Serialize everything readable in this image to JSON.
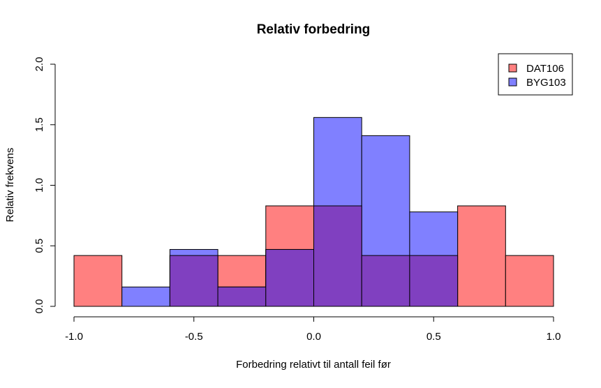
{
  "chart_data": {
    "type": "bar",
    "title": "Relativ forbedring",
    "xlabel": "Forbedring relativt til antall feil før",
    "ylabel": "Relativ frekvens",
    "xlim": [
      -1.0,
      1.0
    ],
    "ylim": [
      0,
      2.0
    ],
    "x_ticks": [
      "-1.0",
      "-0.5",
      "0.0",
      "0.5",
      "1.0"
    ],
    "y_ticks": [
      "0.0",
      "0.5",
      "1.0",
      "1.5",
      "2.0"
    ],
    "bin_edges": [
      -1.0,
      -0.8,
      -0.6,
      -0.4,
      -0.2,
      0.0,
      0.2,
      0.4,
      0.6,
      0.8,
      1.0
    ],
    "series": [
      {
        "name": "DAT106",
        "color": "#ff8080",
        "values": [
          0.42,
          0.0,
          0.42,
          0.42,
          0.83,
          0.83,
          0.42,
          0.42,
          0.83,
          0.42
        ]
      },
      {
        "name": "BYG103",
        "color": "#8080ff",
        "values": [
          0.0,
          0.16,
          0.47,
          0.16,
          0.47,
          1.56,
          1.41,
          0.78,
          0.0,
          0.0
        ]
      }
    ],
    "overlap_color": "#8040c0",
    "legend_position": "top-right",
    "grid": false
  }
}
